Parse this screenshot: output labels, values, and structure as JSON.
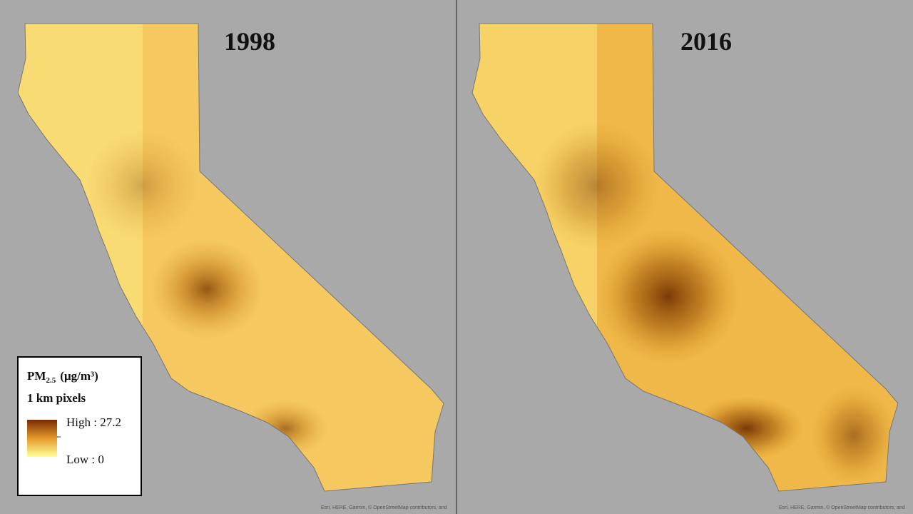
{
  "panels": [
    {
      "title": "1998"
    },
    {
      "title": "2016"
    }
  ],
  "legend": {
    "title": "PM",
    "title_sub": "2.5",
    "title_units": "(µg/m³)",
    "subtitle": "1 km pixels",
    "high": "High : 27.2",
    "low": "Low : 0"
  },
  "attribution": "Esri, HERE, Garmin, © OpenStreetMap contributors, and"
}
